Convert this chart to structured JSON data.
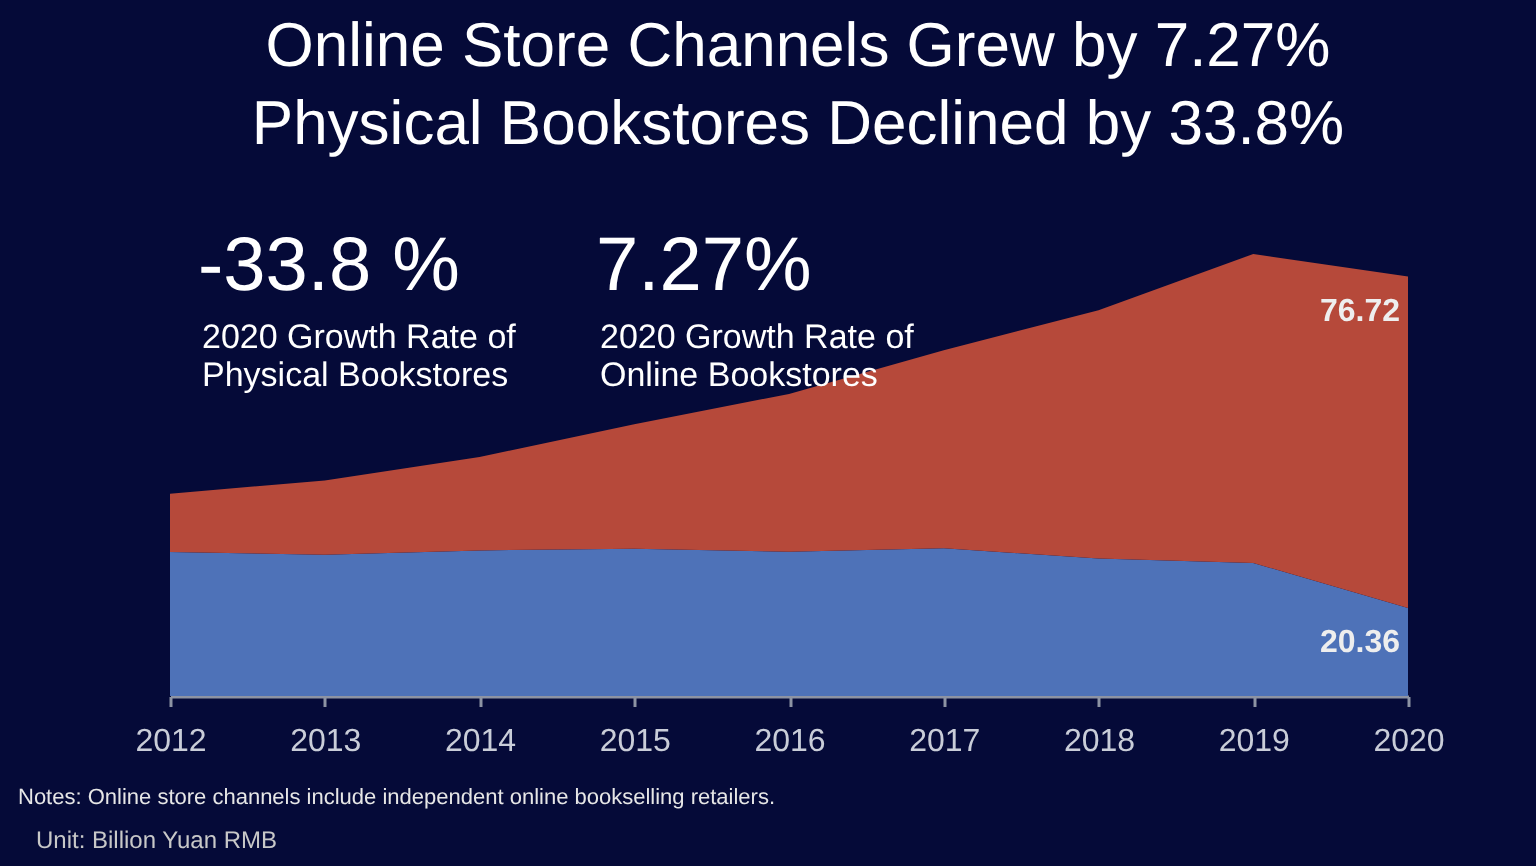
{
  "chart_data": {
    "type": "area",
    "title": "Online Store Channels Grew by 7.27%\nPhysical Bookstores Declined by 33.8%",
    "categories": [
      "2012",
      "2013",
      "2014",
      "2015",
      "2016",
      "2017",
      "2018",
      "2019",
      "2020"
    ],
    "series": [
      {
        "color": "#4e72b8",
        "values": [
          33.3,
          32.7,
          33.7,
          34.1,
          33.4,
          34.2,
          31.8,
          30.8,
          20.36
        ],
        "value_labels": [
          null,
          null,
          null,
          null,
          null,
          null,
          null,
          null,
          "20.36"
        ]
      },
      {
        "color": "#b6493a",
        "values": [
          13.5,
          17.2,
          21.6,
          28.8,
          36.5,
          45.8,
          57.5,
          71.5,
          76.72
        ],
        "value_labels": [
          null,
          null,
          null,
          null,
          null,
          null,
          null,
          null,
          "76.72"
        ]
      }
    ],
    "stacked": true,
    "tick_labels": "x",
    "annotations": [
      "-33.8 %",
      "2020 Growth Rate of\nPhysical Bookstores",
      "7.27%",
      "2020 Growth Rate of\nOnline Bookstores",
      "Notes: Online store channels include independent online bookselling retailers.",
      "Unit: Billion Yuan RMB"
    ]
  }
}
